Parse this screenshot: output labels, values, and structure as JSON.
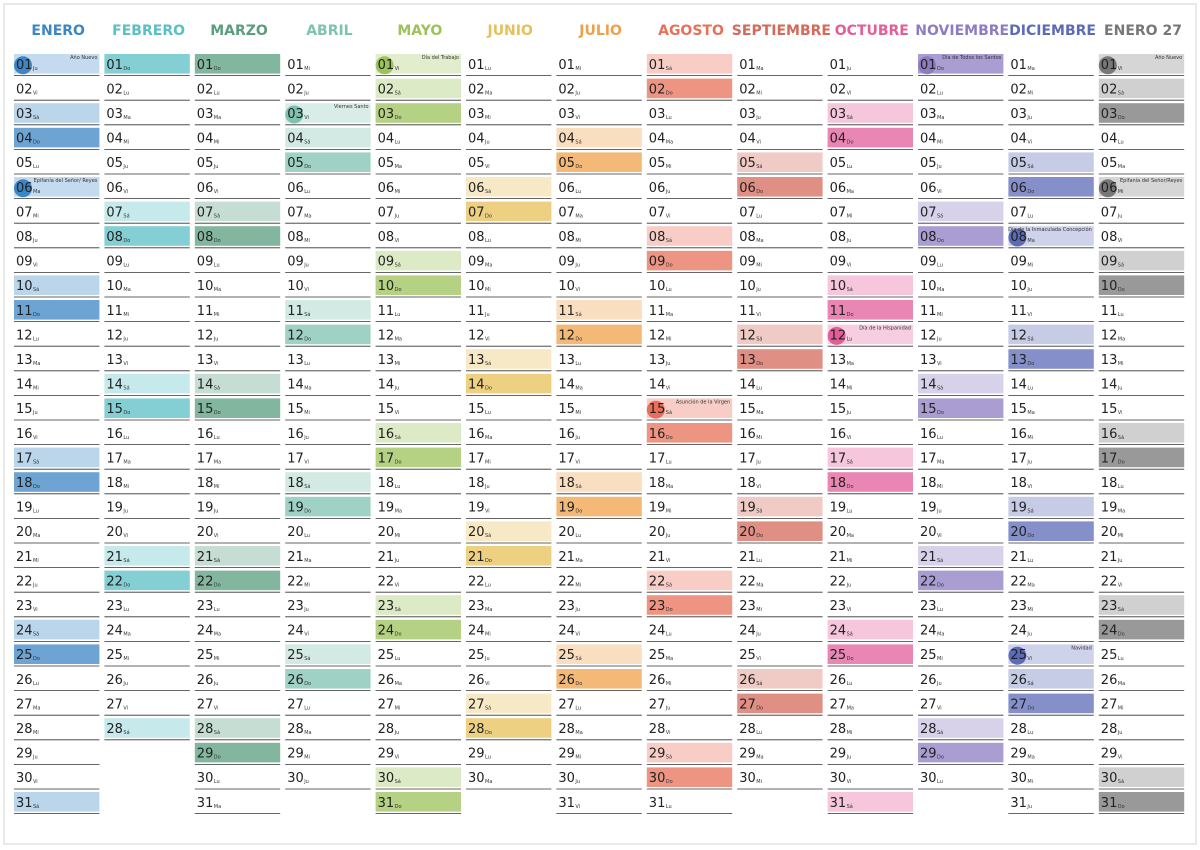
{
  "months": [
    {
      "name": "ENERO",
      "color": "#3d86c6",
      "days": [
        "01",
        "02",
        "03",
        "04",
        "05",
        "06",
        "07",
        "08",
        "09",
        "10",
        "11",
        "12",
        "13",
        "14",
        "15",
        "16",
        "17",
        "18",
        "19",
        "20",
        "21",
        "22",
        "23",
        "24",
        "25",
        "26",
        "27",
        "28",
        "29",
        "30",
        "31"
      ],
      "weekdays": [
        "Ju",
        "Vi",
        "Sá",
        "Do",
        "Lu",
        "Ma",
        "Mi",
        "Ju",
        "Vi",
        "Sá",
        "Do",
        "Lu",
        "Ma",
        "Mi",
        "Ju",
        "Vi",
        "Sá",
        "Do",
        "Lu",
        "Ma",
        "Mi",
        "Ju",
        "Vi",
        "Sá",
        "Do",
        "Lu",
        "Ma",
        "Mi",
        "Ju",
        "Vi",
        "Sá"
      ],
      "holidays": [
        {
          "day": "01",
          "label": "Año Nuevo"
        },
        {
          "day": "06",
          "label": "Epifanía del Señor/ Reyes"
        }
      ]
    },
    {
      "name": "FEBRERO",
      "color": "#5bbfc6",
      "days": [
        "01",
        "02",
        "03",
        "04",
        "05",
        "06",
        "07",
        "08",
        "09",
        "10",
        "11",
        "12",
        "13",
        "14",
        "15",
        "16",
        "17",
        "18",
        "19",
        "20",
        "21",
        "22",
        "23",
        "24",
        "25",
        "26",
        "27",
        "28"
      ],
      "weekdays": [
        "Do",
        "Lu",
        "Ma",
        "Mi",
        "Ju",
        "Vi",
        "Sá",
        "Do",
        "Lu",
        "Ma",
        "Mi",
        "Ju",
        "Vi",
        "Sá",
        "Do",
        "Lu",
        "Ma",
        "Mi",
        "Ju",
        "Vi",
        "Sá",
        "Do",
        "Lu",
        "Ma",
        "Mi",
        "Ju",
        "Vi",
        "Sá"
      ],
      "holidays": []
    },
    {
      "name": "MARZO",
      "color": "#5a9e7d",
      "days": [
        "01",
        "02",
        "03",
        "04",
        "05",
        "06",
        "07",
        "08",
        "09",
        "10",
        "11",
        "12",
        "13",
        "14",
        "15",
        "16",
        "17",
        "18",
        "19",
        "20",
        "21",
        "22",
        "23",
        "24",
        "25",
        "26",
        "27",
        "28",
        "29",
        "30",
        "31"
      ],
      "weekdays": [
        "Do",
        "Lu",
        "Ma",
        "Mi",
        "Ju",
        "Vi",
        "Sá",
        "Do",
        "Lu",
        "Ma",
        "Mi",
        "Ju",
        "Vi",
        "Sá",
        "Do",
        "Lu",
        "Ma",
        "Mi",
        "Ju",
        "Vi",
        "Sá",
        "Do",
        "Lu",
        "Ma",
        "Mi",
        "Ju",
        "Vi",
        "Sá",
        "Do",
        "Lu",
        "Ma"
      ],
      "holidays": []
    },
    {
      "name": "ABRIL",
      "color": "#7fc2b0",
      "days": [
        "01",
        "02",
        "03",
        "04",
        "05",
        "06",
        "07",
        "08",
        "09",
        "10",
        "11",
        "12",
        "13",
        "14",
        "15",
        "16",
        "17",
        "18",
        "19",
        "20",
        "21",
        "22",
        "23",
        "24",
        "25",
        "26",
        "27",
        "28",
        "29",
        "30"
      ],
      "weekdays": [
        "Mi",
        "Ju",
        "Vi",
        "Sá",
        "Do",
        "Lu",
        "Ma",
        "Mi",
        "Ju",
        "Vi",
        "Sá",
        "Do",
        "Lu",
        "Ma",
        "Mi",
        "Ju",
        "Vi",
        "Sá",
        "Do",
        "Lu",
        "Ma",
        "Mi",
        "Ju",
        "Vi",
        "Sá",
        "Do",
        "Lu",
        "Ma",
        "Mi",
        "Ju"
      ],
      "holidays": [
        {
          "day": "03",
          "label": "Viernes Santo"
        }
      ]
    },
    {
      "name": "MAYO",
      "color": "#9cc25a",
      "days": [
        "01",
        "02",
        "03",
        "04",
        "05",
        "06",
        "07",
        "08",
        "09",
        "10",
        "11",
        "12",
        "13",
        "14",
        "15",
        "16",
        "17",
        "18",
        "19",
        "20",
        "21",
        "22",
        "23",
        "24",
        "25",
        "26",
        "27",
        "28",
        "29",
        "30",
        "31"
      ],
      "weekdays": [
        "Vi",
        "Sá",
        "Do",
        "Lu",
        "Ma",
        "Mi",
        "Ju",
        "Vi",
        "Sá",
        "Do",
        "Lu",
        "Ma",
        "Mi",
        "Ju",
        "Vi",
        "Sá",
        "Do",
        "Lu",
        "Ma",
        "Mi",
        "Ju",
        "Vi",
        "Sá",
        "Do",
        "Lu",
        "Ma",
        "Mi",
        "Ju",
        "Vi",
        "Sá",
        "Do"
      ],
      "holidays": [
        {
          "day": "01",
          "label": "Día del Trabajo"
        }
      ]
    },
    {
      "name": "JUNIO",
      "color": "#e8c05a",
      "days": [
        "01",
        "02",
        "03",
        "04",
        "05",
        "06",
        "07",
        "08",
        "09",
        "10",
        "11",
        "12",
        "13",
        "14",
        "15",
        "16",
        "17",
        "18",
        "19",
        "20",
        "21",
        "22",
        "23",
        "24",
        "25",
        "26",
        "27",
        "28",
        "29",
        "30"
      ],
      "weekdays": [
        "Lu",
        "Ma",
        "Mi",
        "Ju",
        "Vi",
        "Sá",
        "Do",
        "Lu",
        "Ma",
        "Mi",
        "Ju",
        "Vi",
        "Sá",
        "Do",
        "Lu",
        "Ma",
        "Mi",
        "Ju",
        "Vi",
        "Sá",
        "Do",
        "Lu",
        "Ma",
        "Mi",
        "Ju",
        "Vi",
        "Sá",
        "Do",
        "Lu",
        "Ma"
      ],
      "holidays": []
    },
    {
      "name": "JULIO",
      "color": "#f0a04a",
      "days": [
        "01",
        "02",
        "03",
        "04",
        "05",
        "06",
        "07",
        "08",
        "09",
        "10",
        "11",
        "12",
        "13",
        "14",
        "15",
        "16",
        "17",
        "18",
        "19",
        "20",
        "21",
        "22",
        "23",
        "24",
        "25",
        "26",
        "27",
        "28",
        "29",
        "30",
        "31"
      ],
      "weekdays": [
        "Mi",
        "Ju",
        "Vi",
        "Sá",
        "Do",
        "Lu",
        "Ma",
        "Mi",
        "Ju",
        "Vi",
        "Sá",
        "Do",
        "Lu",
        "Ma",
        "Mi",
        "Ju",
        "Vi",
        "Sá",
        "Do",
        "Lu",
        "Ma",
        "Mi",
        "Ju",
        "Vi",
        "Sá",
        "Do",
        "Lu",
        "Ma",
        "Mi",
        "Ju",
        "Vi"
      ],
      "holidays": []
    },
    {
      "name": "AGOSTO",
      "color": "#e8705a",
      "days": [
        "01",
        "02",
        "03",
        "04",
        "05",
        "06",
        "07",
        "08",
        "09",
        "10",
        "11",
        "12",
        "13",
        "14",
        "15",
        "16",
        "17",
        "18",
        "19",
        "20",
        "21",
        "22",
        "23",
        "24",
        "25",
        "26",
        "27",
        "28",
        "29",
        "30",
        "31"
      ],
      "weekdays": [
        "Sá",
        "Do",
        "Lu",
        "Ma",
        "Mi",
        "Ju",
        "Vi",
        "Sá",
        "Do",
        "Lu",
        "Ma",
        "Mi",
        "Ju",
        "Vi",
        "Sá",
        "Do",
        "Lu",
        "Ma",
        "Mi",
        "Ju",
        "Vi",
        "Sá",
        "Do",
        "Lu",
        "Ma",
        "Mi",
        "Ju",
        "Vi",
        "Sá",
        "Do",
        "Lu"
      ],
      "holidays": [
        {
          "day": "15",
          "label": "Asunción de la Virgen"
        }
      ]
    },
    {
      "name": "SEPTIEMBRE",
      "color": "#d46a5a",
      "days": [
        "01",
        "02",
        "03",
        "04",
        "05",
        "06",
        "07",
        "08",
        "09",
        "10",
        "11",
        "12",
        "13",
        "14",
        "15",
        "16",
        "17",
        "18",
        "19",
        "20",
        "21",
        "22",
        "23",
        "24",
        "25",
        "26",
        "27",
        "28",
        "29",
        "30"
      ],
      "weekdays": [
        "Ma",
        "Mi",
        "Ju",
        "Vi",
        "Sá",
        "Do",
        "Lu",
        "Ma",
        "Mi",
        "Ju",
        "Vi",
        "Sá",
        "Do",
        "Lu",
        "Ma",
        "Mi",
        "Ju",
        "Vi",
        "Sá",
        "Do",
        "Lu",
        "Ma",
        "Mi",
        "Ju",
        "Vi",
        "Sá",
        "Do",
        "Lu",
        "Ma",
        "Mi"
      ],
      "holidays": []
    },
    {
      "name": "OCTUBRE",
      "color": "#e35d9a",
      "days": [
        "01",
        "02",
        "03",
        "04",
        "05",
        "06",
        "07",
        "08",
        "09",
        "10",
        "11",
        "12",
        "13",
        "14",
        "15",
        "16",
        "17",
        "18",
        "19",
        "20",
        "21",
        "22",
        "23",
        "24",
        "25",
        "26",
        "27",
        "28",
        "29",
        "30",
        "31"
      ],
      "weekdays": [
        "Ju",
        "Vi",
        "Sá",
        "Do",
        "Lu",
        "Ma",
        "Mi",
        "Ju",
        "Vi",
        "Sá",
        "Do",
        "Lu",
        "Ma",
        "Mi",
        "Ju",
        "Vi",
        "Sá",
        "Do",
        "Lu",
        "Ma",
        "Mi",
        "Ju",
        "Vi",
        "Sá",
        "Do",
        "Lu",
        "Ma",
        "Mi",
        "Ju",
        "Vi",
        "Sá"
      ],
      "holidays": [
        {
          "day": "12",
          "label": "Día de la Hispanidad"
        }
      ]
    },
    {
      "name": "NOVIEMBRE",
      "color": "#8e7cc3",
      "days": [
        "01",
        "02",
        "03",
        "04",
        "05",
        "06",
        "07",
        "08",
        "09",
        "10",
        "11",
        "12",
        "13",
        "14",
        "15",
        "16",
        "17",
        "18",
        "19",
        "20",
        "21",
        "22",
        "23",
        "24",
        "25",
        "26",
        "27",
        "28",
        "29",
        "30"
      ],
      "weekdays": [
        "Do",
        "Lu",
        "Ma",
        "Mi",
        "Ju",
        "Vi",
        "Sá",
        "Do",
        "Lu",
        "Ma",
        "Mi",
        "Ju",
        "Vi",
        "Sá",
        "Do",
        "Lu",
        "Ma",
        "Mi",
        "Ju",
        "Vi",
        "Sá",
        "Do",
        "Lu",
        "Ma",
        "Mi",
        "Ju",
        "Vi",
        "Sá",
        "Do",
        "Lu"
      ],
      "holidays": [
        {
          "day": "01",
          "label": "Día de Todos los Santos"
        }
      ]
    },
    {
      "name": "DICIEMBRE",
      "color": "#5c6bb8",
      "days": [
        "01",
        "02",
        "03",
        "04",
        "05",
        "06",
        "07",
        "08",
        "09",
        "10",
        "11",
        "12",
        "13",
        "14",
        "15",
        "16",
        "17",
        "18",
        "19",
        "20",
        "21",
        "22",
        "23",
        "24",
        "25",
        "26",
        "27",
        "28",
        "29",
        "30",
        "31"
      ],
      "weekdays": [
        "Ma",
        "Mi",
        "Ju",
        "Vi",
        "Sá",
        "Do",
        "Lu",
        "Ma",
        "Mi",
        "Ju",
        "Vi",
        "Sá",
        "Do",
        "Lu",
        "Ma",
        "Mi",
        "Ju",
        "Vi",
        "Sá",
        "Do",
        "Lu",
        "Ma",
        "Mi",
        "Ju",
        "Vi",
        "Sá",
        "Do",
        "Lu",
        "Ma",
        "Mi",
        "Ju"
      ],
      "holidays": [
        {
          "day": "08",
          "label": "Día de la Inmaculada Concepción"
        },
        {
          "day": "25",
          "label": "Navidad"
        }
      ]
    },
    {
      "name": "ENERO 27",
      "color": "#777777",
      "days": [
        "01",
        "02",
        "03",
        "04",
        "05",
        "06",
        "07",
        "08",
        "09",
        "10",
        "11",
        "12",
        "13",
        "14",
        "15",
        "16",
        "17",
        "18",
        "19",
        "20",
        "21",
        "22",
        "23",
        "24",
        "25",
        "26",
        "27",
        "28",
        "29",
        "30",
        "31"
      ],
      "weekdays": [
        "Vi",
        "Sá",
        "Do",
        "Lu",
        "Ma",
        "Mi",
        "Ju",
        "Vi",
        "Sá",
        "Do",
        "Lu",
        "Ma",
        "Mi",
        "Ju",
        "Vi",
        "Sá",
        "Do",
        "Lu",
        "Ma",
        "Mi",
        "Ju",
        "Vi",
        "Sá",
        "Do",
        "Lu",
        "Ma",
        "Mi",
        "Ju",
        "Vi",
        "Sá",
        "Do"
      ],
      "holidays": [
        {
          "day": "01",
          "label": "Año Nuevo"
        },
        {
          "day": "06",
          "label": "Epifanía del Señor/Reyes"
        }
      ]
    }
  ]
}
